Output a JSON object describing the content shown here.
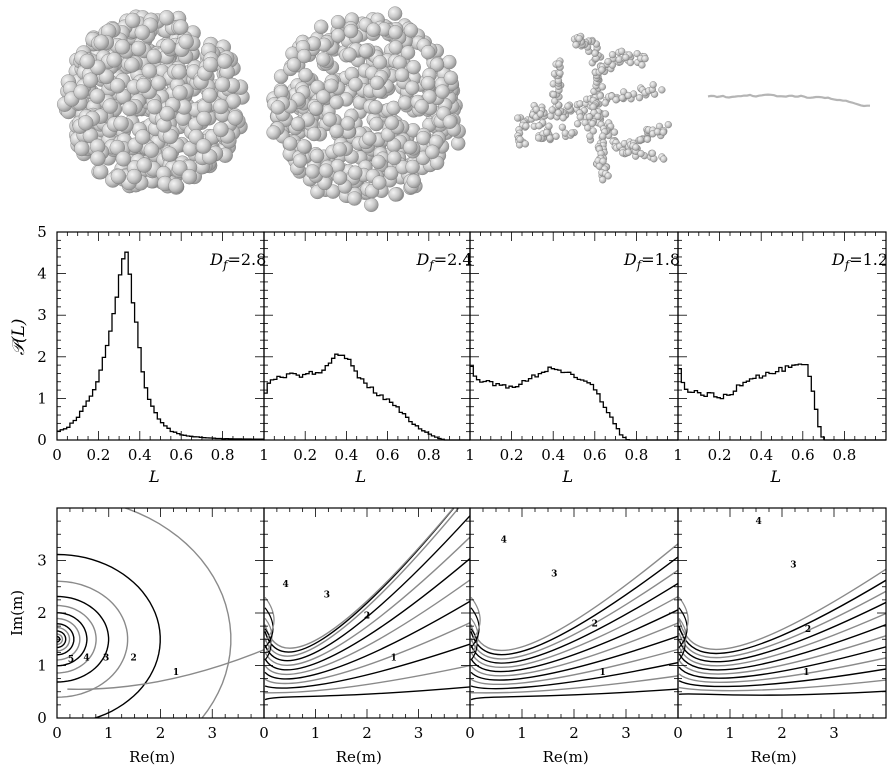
{
  "chart_data": [
    {
      "type": "bar",
      "role": "cluster-renderings",
      "panels": [
        {
          "fractal_dimension": 2.8
        },
        {
          "fractal_dimension": 2.4
        },
        {
          "fractal_dimension": 1.8
        },
        {
          "fractal_dimension": 1.2
        }
      ]
    },
    {
      "type": "line",
      "role": "histograms",
      "ylabel": "𝒫(L)",
      "xlabel": "L",
      "xlim": [
        0,
        1
      ],
      "ylim": [
        0,
        5
      ],
      "x_ticks": [
        0,
        0.2,
        0.4,
        0.6,
        0.8
      ],
      "x_tick_labels_first": [
        "0",
        "0.2",
        "0.4",
        "0.6",
        "0.8"
      ],
      "x_tick_labels_other": [
        "1",
        "0.2",
        "0.4",
        "0.6",
        "0.8"
      ],
      "y_ticks": [
        0,
        1,
        2,
        3,
        4,
        5
      ],
      "y_tick_labels": [
        "0",
        "1",
        "2",
        "3",
        "4",
        "5"
      ],
      "panels": [
        {
          "label": "D",
          "subscript": "f",
          "value_text": "=2.8",
          "x": [
            0.0,
            0.05,
            0.1,
            0.15,
            0.2,
            0.25,
            0.28,
            0.3,
            0.32,
            0.33,
            0.34,
            0.35,
            0.36,
            0.38,
            0.4,
            0.42,
            0.45,
            0.5,
            0.55,
            0.6,
            0.7,
            0.8,
            1.0
          ],
          "y": [
            0.2,
            0.3,
            0.55,
            0.9,
            1.5,
            2.4,
            3.2,
            3.8,
            4.3,
            4.55,
            4.45,
            4.1,
            3.6,
            2.9,
            2.1,
            1.5,
            0.9,
            0.45,
            0.22,
            0.12,
            0.06,
            0.03,
            0.02
          ]
        },
        {
          "label": "D",
          "subscript": "f",
          "value_text": "=2.4",
          "x": [
            0.0,
            0.02,
            0.05,
            0.1,
            0.15,
            0.2,
            0.25,
            0.28,
            0.32,
            0.35,
            0.38,
            0.42,
            0.45,
            0.5,
            0.55,
            0.6,
            0.65,
            0.7,
            0.75,
            0.8,
            0.85,
            0.88
          ],
          "y": [
            1.0,
            1.3,
            1.45,
            1.5,
            1.6,
            1.55,
            1.65,
            1.6,
            1.85,
            2.05,
            2.1,
            1.85,
            1.6,
            1.35,
            1.1,
            0.95,
            0.75,
            0.5,
            0.3,
            0.15,
            0.04,
            0.0
          ]
        },
        {
          "label": "D",
          "subscript": "f",
          "value_text": "=1.8",
          "x": [
            0.0,
            0.02,
            0.05,
            0.1,
            0.15,
            0.2,
            0.25,
            0.3,
            0.35,
            0.4,
            0.45,
            0.5,
            0.55,
            0.6,
            0.65,
            0.7,
            0.73,
            0.76
          ],
          "y": [
            1.8,
            1.6,
            1.45,
            1.35,
            1.3,
            1.3,
            1.35,
            1.5,
            1.65,
            1.75,
            1.65,
            1.5,
            1.4,
            1.25,
            0.8,
            0.35,
            0.1,
            0.0
          ]
        },
        {
          "label": "D",
          "subscript": "f",
          "value_text": "=1.2",
          "x": [
            0.0,
            0.02,
            0.05,
            0.1,
            0.15,
            0.2,
            0.25,
            0.3,
            0.35,
            0.4,
            0.45,
            0.5,
            0.55,
            0.6,
            0.62,
            0.64,
            0.66,
            0.68,
            0.7
          ],
          "y": [
            1.9,
            1.4,
            1.2,
            1.1,
            1.1,
            1.0,
            1.1,
            1.35,
            1.5,
            1.55,
            1.6,
            1.7,
            1.75,
            1.8,
            1.75,
            1.4,
            0.8,
            0.3,
            0.0
          ]
        }
      ]
    },
    {
      "type": "line",
      "role": "contour-maps",
      "xlabel": "Re(m)",
      "ylabel": "Im(m)",
      "xlim": [
        0,
        4
      ],
      "ylim": [
        0,
        4
      ],
      "x_ticks": [
        0,
        1,
        2,
        3
      ],
      "x_tick_labels": [
        "0",
        "1",
        "2",
        "3"
      ],
      "y_ticks": [
        0,
        1,
        2,
        3
      ],
      "y_tick_labels": [
        "0",
        "1",
        "2",
        "3"
      ],
      "panels": [
        {
          "labels": [
            {
              "text": "5",
              "re": 0.27,
              "im": 1.12
            },
            {
              "text": "4",
              "re": 0.57,
              "im": 1.15
            },
            {
              "text": "3",
              "re": 0.95,
              "im": 1.15
            },
            {
              "text": "2",
              "re": 1.48,
              "im": 1.15
            },
            {
              "text": "1",
              "re": 2.3,
              "im": 0.88
            }
          ]
        },
        {
          "labels": [
            {
              "text": "4",
              "re": 0.42,
              "im": 2.55
            },
            {
              "text": "3",
              "re": 1.22,
              "im": 2.35
            },
            {
              "text": "2",
              "re": 2.0,
              "im": 1.95
            },
            {
              "text": "1",
              "re": 2.52,
              "im": 1.15
            }
          ]
        },
        {
          "labels": [
            {
              "text": "4",
              "re": 0.65,
              "im": 3.4
            },
            {
              "text": "3",
              "re": 1.62,
              "im": 2.75
            },
            {
              "text": "2",
              "re": 2.4,
              "im": 1.8
            },
            {
              "text": "1",
              "re": 2.55,
              "im": 0.88
            }
          ]
        },
        {
          "labels": [
            {
              "text": "4",
              "re": 1.55,
              "im": 3.75
            },
            {
              "text": "3",
              "re": 2.22,
              "im": 2.92
            },
            {
              "text": "2",
              "re": 2.5,
              "im": 1.7
            },
            {
              "text": "1",
              "re": 2.47,
              "im": 0.88
            }
          ]
        }
      ]
    }
  ]
}
